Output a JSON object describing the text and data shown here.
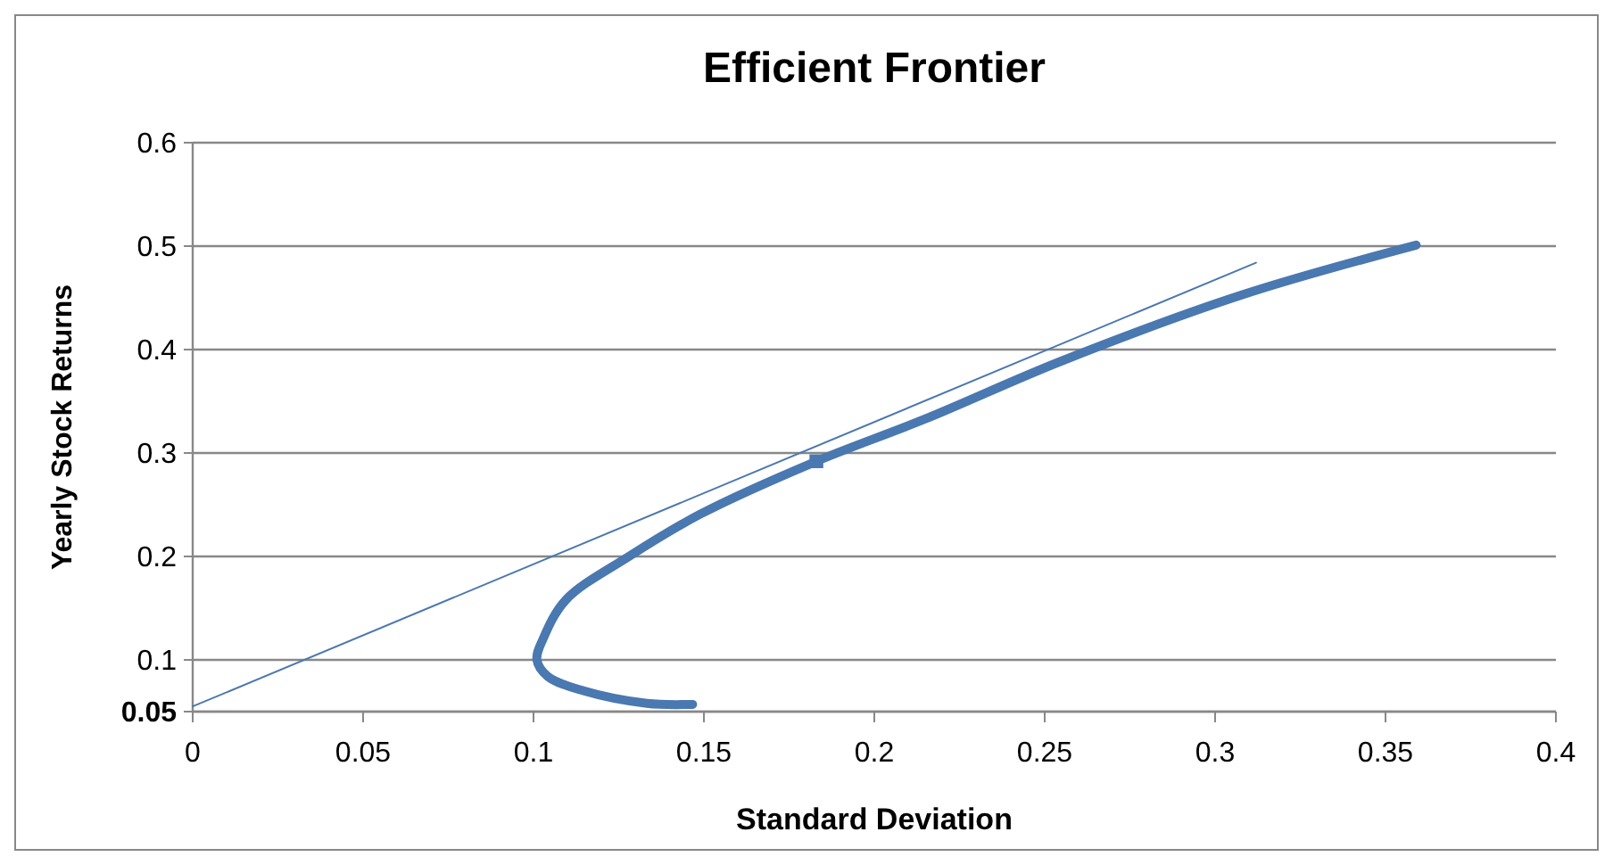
{
  "chart_data": {
    "type": "line",
    "title": "Efficient Frontier",
    "xlabel": "Standard Deviation",
    "ylabel": "Yearly Stock Returns",
    "xlim": [
      0,
      0.4
    ],
    "xticks": [
      0,
      0.05,
      0.1,
      0.15,
      0.2,
      0.25,
      0.3,
      0.35,
      0.4
    ],
    "ylim": [
      0.05,
      0.6
    ],
    "yticks": [
      0.05,
      0.1,
      0.2,
      0.3,
      0.4,
      0.5,
      0.6
    ],
    "grid": "y",
    "series": [
      {
        "color": "#4a78b0",
        "x": [
          0.1467,
          0.1333,
          0.1148,
          0.1042,
          0.101,
          0.1029,
          0.1095,
          0.128,
          0.149,
          0.183,
          0.215,
          0.255,
          0.308,
          0.359
        ],
        "values": [
          0.057,
          0.058,
          0.07,
          0.084,
          0.1,
          0.121,
          0.158,
          0.2,
          0.241,
          0.292,
          0.333,
          0.389,
          0.453,
          0.501
        ]
      },
      {
        "color": "#4a78b0",
        "x": [
          0,
          0.312
        ],
        "values": [
          0.055,
          0.484
        ]
      },
      {
        "type": "scatter",
        "marker": "square",
        "color": "#4a78b0",
        "x": [
          0.183
        ],
        "values": [
          0.292
        ]
      }
    ]
  }
}
